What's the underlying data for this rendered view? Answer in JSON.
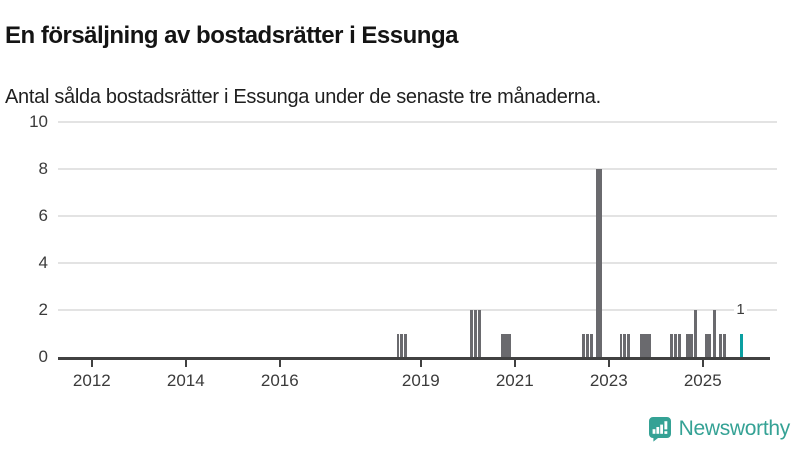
{
  "header": {
    "title": "En försäljning av bostadsrätter i Essunga",
    "subtitle": "Antal sålda bostadsrätter i Essunga under de senaste tre månaderna."
  },
  "footer": {
    "brand": "Newsworthy",
    "logo_icon": "bar-chart-speech-bubble-icon"
  },
  "colors": {
    "bar": "#6a6a6e",
    "highlight_bar": "#0a9fa1",
    "axis": "#414141",
    "grid": "#e3e3e3",
    "tick_text": "#3b3b3b",
    "brand": "#35a295"
  },
  "chart_data": {
    "type": "bar",
    "title": "En försäljning av bostadsrätter i Essunga",
    "subtitle": "Antal sålda bostadsrätter i Essunga under de senaste tre månaderna.",
    "xlabel": "",
    "ylabel": "",
    "x_domain": [
      2011.28,
      2026.58
    ],
    "y_domain": [
      0,
      10
    ],
    "y_ticks": [
      0,
      2,
      4,
      6,
      8,
      10
    ],
    "x_ticks": [
      2012,
      2014,
      2016,
      2019,
      2021,
      2023,
      2025
    ],
    "grid": "horizontal",
    "legend": "none",
    "annotation": {
      "text": "1",
      "year": 2025.79,
      "value": 1
    },
    "bars": [
      {
        "year": 2018.485,
        "months": 1,
        "value": 1
      },
      {
        "year": 2018.568,
        "months": 1,
        "value": 1
      },
      {
        "year": 2018.652,
        "months": 1,
        "value": 1
      },
      {
        "year": 2020.047,
        "months": 1,
        "value": 2
      },
      {
        "year": 2020.13,
        "months": 1,
        "value": 2
      },
      {
        "year": 2020.213,
        "months": 1,
        "value": 2
      },
      {
        "year": 2020.7,
        "months": 3,
        "value": 1
      },
      {
        "year": 2022.43,
        "months": 1,
        "value": 1
      },
      {
        "year": 2022.513,
        "months": 1,
        "value": 1
      },
      {
        "year": 2022.596,
        "months": 1,
        "value": 1
      },
      {
        "year": 2022.72,
        "months": 2,
        "value": 8
      },
      {
        "year": 2023.23,
        "months": 1,
        "value": 1
      },
      {
        "year": 2023.313,
        "months": 1,
        "value": 1
      },
      {
        "year": 2023.396,
        "months": 1,
        "value": 1
      },
      {
        "year": 2023.66,
        "months": 3,
        "value": 1
      },
      {
        "year": 2024.31,
        "months": 1,
        "value": 1
      },
      {
        "year": 2024.393,
        "months": 1,
        "value": 1
      },
      {
        "year": 2024.476,
        "months": 1,
        "value": 1
      },
      {
        "year": 2024.64,
        "months": 2,
        "value": 1
      },
      {
        "year": 2024.81,
        "months": 1,
        "value": 2
      },
      {
        "year": 2025.04,
        "months": 2,
        "value": 1
      },
      {
        "year": 2025.21,
        "months": 1,
        "value": 2
      },
      {
        "year": 2025.34,
        "months": 1,
        "value": 1
      },
      {
        "year": 2025.43,
        "months": 1,
        "value": 1
      },
      {
        "year": 2025.79,
        "months": 1,
        "value": 1,
        "highlight": true
      }
    ]
  }
}
